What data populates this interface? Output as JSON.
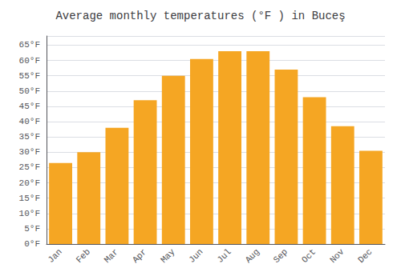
{
  "chart_data": {
    "type": "bar",
    "title": "Average monthly temperatures (°F ) in Buceş",
    "categories": [
      "Jan",
      "Feb",
      "Mar",
      "Apr",
      "May",
      "Jun",
      "Jul",
      "Aug",
      "Sep",
      "Oct",
      "Nov",
      "Dec"
    ],
    "values": [
      26.5,
      30.0,
      38.0,
      47.0,
      55.0,
      60.5,
      63.0,
      63.0,
      57.0,
      48.0,
      38.5,
      30.5
    ],
    "color": "#F5A623",
    "ylim": [
      0,
      68
    ],
    "yticks": [
      {
        "value": 0,
        "label": "0°F"
      },
      {
        "value": 5,
        "label": "5°F"
      },
      {
        "value": 10,
        "label": "10°F"
      },
      {
        "value": 15,
        "label": "15°F"
      },
      {
        "value": 20,
        "label": "20°F"
      },
      {
        "value": 25,
        "label": "25°F"
      },
      {
        "value": 30,
        "label": "30°F"
      },
      {
        "value": 35,
        "label": "35°F"
      },
      {
        "value": 40,
        "label": "40°F"
      },
      {
        "value": 45,
        "label": "45°F"
      },
      {
        "value": 50,
        "label": "50°F"
      },
      {
        "value": 55,
        "label": "55°F"
      },
      {
        "value": 60,
        "label": "60°F"
      },
      {
        "value": 65,
        "label": "65°F"
      }
    ],
    "grid": true
  }
}
